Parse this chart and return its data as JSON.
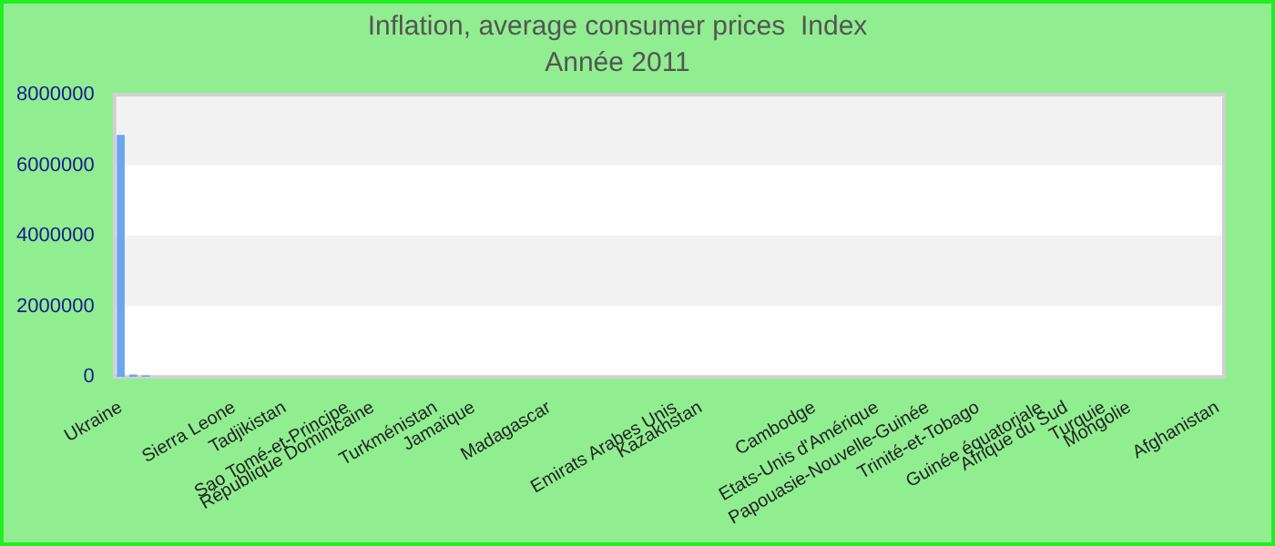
{
  "chart_data": {
    "type": "bar",
    "title": "Inflation, average consumer prices  Index",
    "subtitle": "Année 2011",
    "categories": [
      "Ukraine",
      null,
      null,
      null,
      null,
      null,
      null,
      null,
      null,
      "Sierra Leone",
      null,
      null,
      null,
      "Tadjikistan",
      null,
      null,
      null,
      null,
      "Sao Tomé-et-Principe",
      null,
      "République Dominicaine",
      null,
      null,
      null,
      null,
      "Turkménistan",
      null,
      null,
      "Jamaïque",
      null,
      null,
      null,
      null,
      null,
      "Madagascar",
      null,
      null,
      null,
      null,
      null,
      null,
      null,
      null,
      null,
      "Emirats Arabes Unis",
      null,
      "Kazakhstan",
      null,
      null,
      null,
      null,
      null,
      null,
      null,
      null,
      "Cambodge",
      null,
      null,
      null,
      null,
      "Etats-Unis d'Amérique",
      null,
      null,
      null,
      "Papouasie-Nouvelle-Guinée",
      null,
      null,
      null,
      "Trinité-et-Tobago",
      null,
      null,
      null,
      null,
      "Guinée équatoriale",
      null,
      "Afrique du Sud",
      null,
      null,
      "Turquie",
      null,
      "Mongolie",
      null,
      null,
      null,
      null,
      null,
      null,
      "Afghanistan"
    ],
    "values": [
      6860000,
      70000,
      40000,
      0,
      0,
      0,
      0,
      0,
      0,
      0,
      0,
      0,
      0,
      0,
      0,
      0,
      0,
      0,
      0,
      0,
      0,
      0,
      0,
      0,
      0,
      0,
      0,
      0,
      0,
      0,
      0,
      0,
      0,
      0,
      0,
      0,
      0,
      0,
      0,
      0,
      0,
      0,
      0,
      0,
      0,
      0,
      0,
      0,
      0,
      0,
      0,
      0,
      0,
      0,
      0,
      0,
      0,
      0,
      0,
      0,
      0,
      0,
      0,
      0,
      0,
      0,
      0,
      0,
      0,
      0,
      0,
      0,
      0,
      0,
      0,
      0,
      0,
      0,
      0,
      0,
      0,
      0,
      0,
      0,
      0,
      0,
      0,
      0
    ],
    "color": "#6aa7f0",
    "ylim": [
      0,
      8000000
    ],
    "yticks": [
      0,
      2000000,
      4000000,
      6000000,
      8000000
    ]
  }
}
